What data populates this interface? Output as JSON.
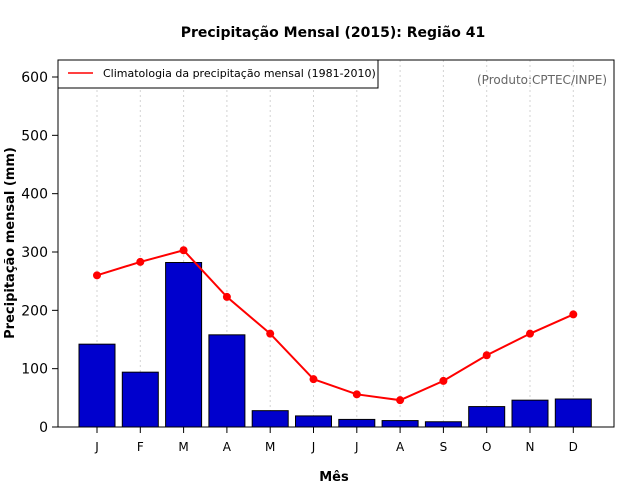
{
  "chart_data": {
    "type": "bar",
    "title": "Precipitação Mensal (2015): Região 41",
    "xlabel": "Mês",
    "ylabel": "Precipitação mensal (mm)",
    "ylim": [
      0,
      600
    ],
    "yticks": [
      0,
      100,
      200,
      300,
      400,
      500,
      600
    ],
    "categories": [
      "J",
      "F",
      "M",
      "A",
      "M",
      "J",
      "J",
      "A",
      "S",
      "O",
      "N",
      "D"
    ],
    "series": [
      {
        "name": "Precipitação mensal 2015",
        "kind": "bar",
        "color": "#0000CD",
        "values": [
          142,
          94,
          282,
          158,
          28,
          19,
          13,
          11,
          9,
          35,
          46,
          48
        ]
      },
      {
        "name": "Climatologia da precipitação mensal (1981-2010)",
        "kind": "line",
        "color": "#FF0000",
        "values": [
          260,
          283,
          303,
          223,
          160,
          82,
          56,
          46,
          79,
          123,
          160,
          193
        ]
      }
    ],
    "legend": {
      "position": "top-left",
      "entries": [
        "Climatologia da precipitação mensal (1981-2010)"
      ]
    },
    "annotation": "(Produto:CPTEC/INPE)",
    "grid": {
      "vertical": true,
      "horizontal": false
    }
  }
}
